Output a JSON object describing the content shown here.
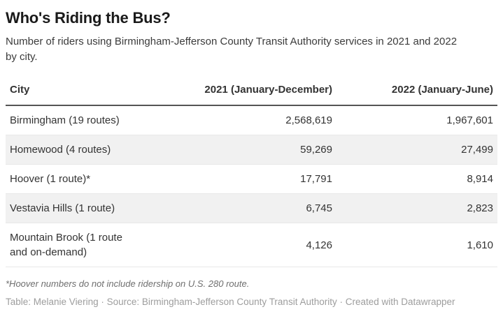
{
  "header": {
    "title": "Who's Riding the Bus?",
    "subtitle": "Number of riders using Birmingham-Jefferson County Transit Authority services in 2021 and 2022 by city."
  },
  "table": {
    "columns": {
      "city": "City",
      "y2021": "2021 (January-December)",
      "y2022": "2022 (January-June)"
    },
    "rows": [
      {
        "city": "Birmingham (19 routes)",
        "y2021": "2,568,619",
        "y2022": "1,967,601"
      },
      {
        "city": "Homewood (4 routes)",
        "y2021": "59,269",
        "y2022": "27,499"
      },
      {
        "city": "Hoover (1 route)*",
        "y2021": "17,791",
        "y2022": "8,914"
      },
      {
        "city": "Vestavia Hills (1 route)",
        "y2021": "6,745",
        "y2022": "2,823"
      },
      {
        "city": "Mountain Brook (1 route and on-demand)",
        "y2021": "4,126",
        "y2022": "1,610"
      }
    ]
  },
  "footnote": "*Hoover numbers do not include ridership on U.S. 280 route.",
  "attribution": "Table: Melanie Viering · Source: Birmingham-Jefferson County Transit Authority · Created with Datawrapper",
  "colors": {
    "title_text": "#1a1a1a",
    "body_text": "#333333",
    "row_stripe": "#f1f1f1",
    "header_rule": "#545454",
    "row_divider": "#e8e8e8",
    "footnote_text": "#6e6e6e",
    "attribution_text": "#9d9d9d",
    "background": "#ffffff"
  },
  "chart_data": {
    "type": "table",
    "title": "Who's Riding the Bus?",
    "subtitle": "Number of riders using Birmingham-Jefferson County Transit Authority services in 2021 and 2022 by city.",
    "columns": [
      "City",
      "2021 (January-December)",
      "2022 (January-June)"
    ],
    "rows": [
      [
        "Birmingham (19 routes)",
        2568619,
        1967601
      ],
      [
        "Homewood (4 routes)",
        59269,
        27499
      ],
      [
        "Hoover (1 route)*",
        17791,
        8914
      ],
      [
        "Vestavia Hills (1 route)",
        6745,
        2823
      ],
      [
        "Mountain Brook (1 route and on-demand)",
        4126,
        1610
      ]
    ],
    "footnote": "*Hoover numbers do not include ridership on U.S. 280 route.",
    "credit": "Table: Melanie Viering · Source: Birmingham-Jefferson County Transit Authority · Created with Datawrapper",
    "layout_hints": {
      "striped_rows": true,
      "numeric_columns_right_aligned": true
    }
  }
}
